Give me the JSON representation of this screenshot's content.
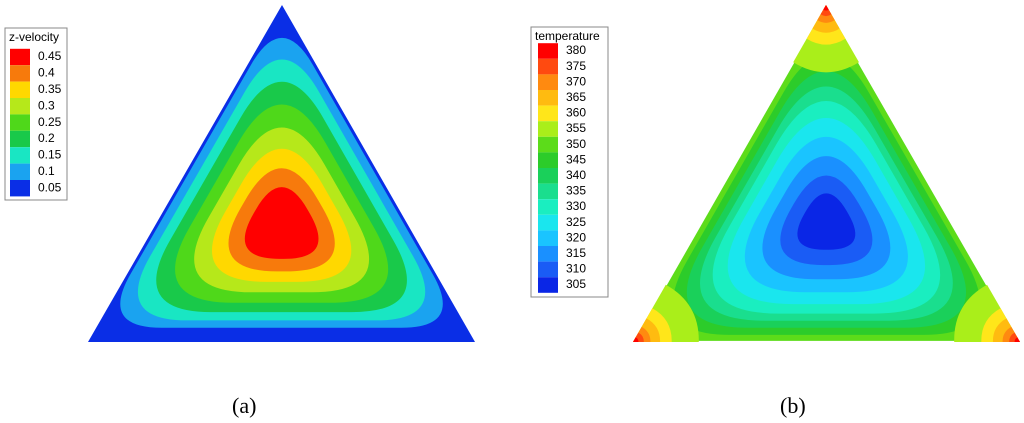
{
  "panels": [
    {
      "type": "contour",
      "legend_title": "z-velocity",
      "levels": [
        0.45,
        0.4,
        0.35,
        0.3,
        0.25,
        0.2,
        0.15,
        0.1,
        0.05
      ],
      "colors": [
        "#ff0000",
        "#f77a0c",
        "#ffd800",
        "#b6e81a",
        "#4fd81a",
        "#19c94a",
        "#19e6c3",
        "#1aa3f0",
        "#0a2ee6"
      ],
      "caption": "(a)"
    },
    {
      "type": "contour",
      "legend_title": "temperature",
      "levels": [
        380,
        375,
        370,
        365,
        360,
        355,
        350,
        345,
        340,
        335,
        330,
        325,
        320,
        315,
        310,
        305
      ],
      "colors": [
        "#ff0000",
        "#ff4a10",
        "#ff8a10",
        "#ffbb10",
        "#ffe61a",
        "#aaee1a",
        "#5cdc1a",
        "#2ccc2a",
        "#1ad05a",
        "#1ade8e",
        "#1aeec0",
        "#1ae6ee",
        "#1ac4ff",
        "#1a90ff",
        "#1a5cf5",
        "#0a26e6"
      ],
      "caption": "(b)"
    }
  ]
}
